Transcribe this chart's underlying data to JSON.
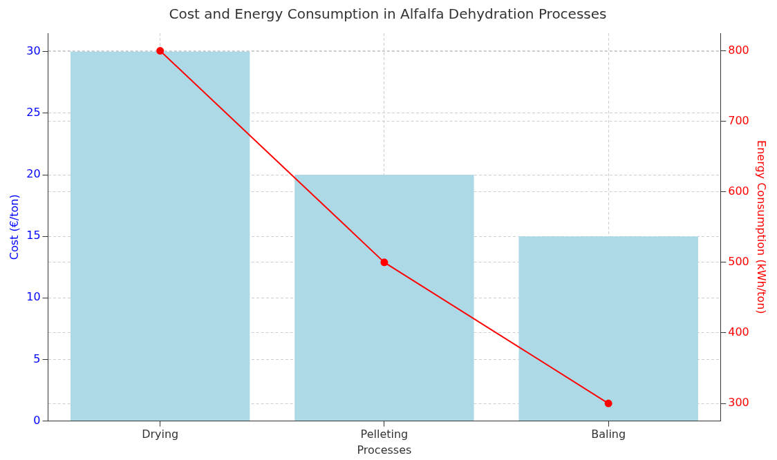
{
  "chart_data": {
    "type": "bar",
    "title": "Cost and Energy Consumption in Alfalfa Dehydration Processes",
    "xlabel": "Processes",
    "ylabel": "Cost (€/ton)",
    "y2label": "Energy Consumption (kWh/ton)",
    "categories": [
      "Drying",
      "Pelleting",
      "Baling"
    ],
    "series": [
      {
        "color": "#add8e6",
        "values": [
          30,
          20,
          15
        ]
      },
      {
        "type": "line",
        "axis": "y2",
        "color": "#ff0000",
        "values": [
          800,
          500,
          300
        ],
        "marker": "circle",
        "line_style": "solid"
      }
    ],
    "ylim": [
      0,
      31.5
    ],
    "yticks": [
      0,
      5,
      10,
      15,
      20,
      25,
      30
    ],
    "y2lim": [
      275,
      825
    ],
    "y2ticks": [
      300,
      400,
      500,
      600,
      700,
      800
    ],
    "grid": true,
    "legend": false
  }
}
